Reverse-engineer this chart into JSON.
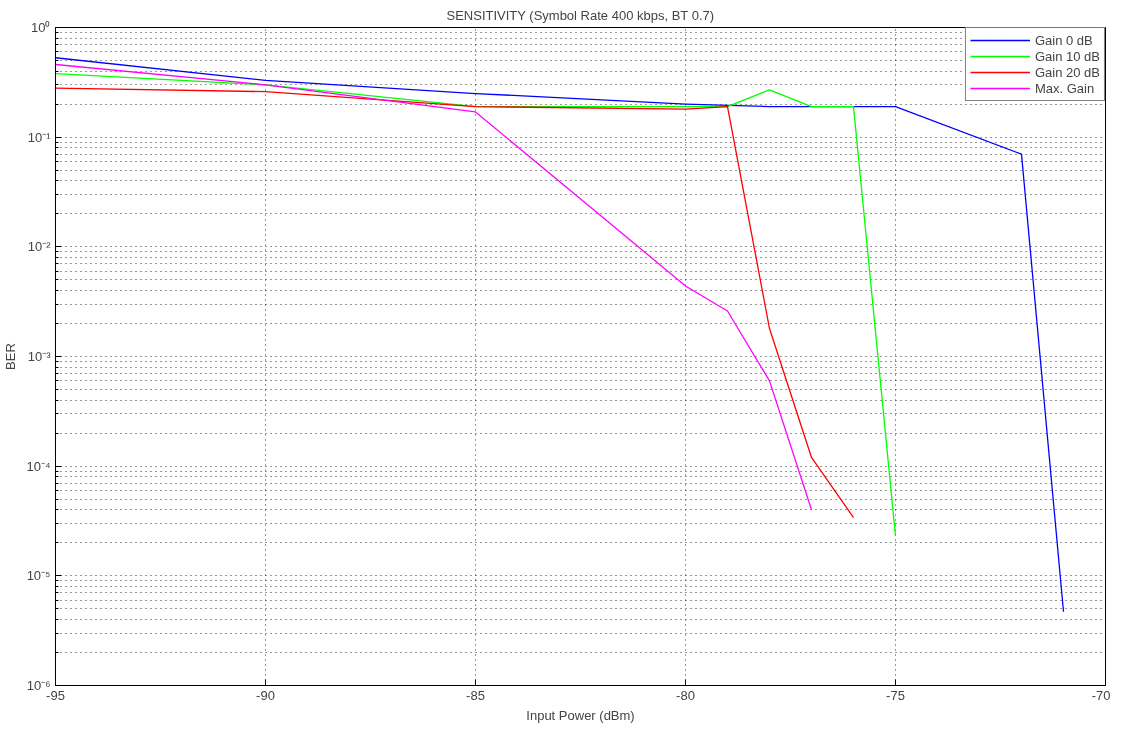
{
  "chart_data": {
    "type": "line",
    "title": "SENSITIVITY (Symbol Rate 400 kbps, BT 0.7)",
    "xlabel": "Input Power (dBm)",
    "ylabel": "BER",
    "log": "y",
    "grid": true,
    "legend": "top right",
    "line_style": "solid",
    "xlim": [
      -95,
      -70
    ],
    "xticks": [
      -95,
      -90,
      -85,
      -80,
      -75,
      -70
    ],
    "ylim": [
      1e-06,
      1
    ],
    "yticks": [
      {
        "value": 1e-06,
        "label": "10⁻⁶"
      },
      {
        "value": 1e-05,
        "label": "10⁻⁵"
      },
      {
        "value": 0.0001,
        "label": "10⁻⁴"
      },
      {
        "value": 0.001,
        "label": "10⁻³"
      },
      {
        "value": 0.01,
        "label": "10⁻²"
      },
      {
        "value": 0.1,
        "label": "10⁻¹"
      },
      {
        "value": 1,
        "label": "10⁰"
      }
    ],
    "series": [
      {
        "name": "Gain 0 dB",
        "color": "#0000ff",
        "x": [
          -95,
          -90,
          -85,
          -80,
          -78,
          -75,
          -72,
          -71
        ],
        "values": [
          0.53,
          0.33,
          0.25,
          0.2,
          0.19,
          0.19,
          0.07,
          4.7e-06
        ]
      },
      {
        "name": "Gain 10 dB",
        "color": "#00ff00",
        "x": [
          -95,
          -90,
          -85,
          -80,
          -79,
          -78,
          -77,
          -76,
          -75
        ],
        "values": [
          0.38,
          0.3,
          0.19,
          0.19,
          0.19,
          0.27,
          0.19,
          0.19,
          2.3e-05
        ]
      },
      {
        "name": "Gain 20 dB",
        "color": "#ff0000",
        "x": [
          -95,
          -90,
          -85,
          -80,
          -79,
          -78,
          -77,
          -76
        ],
        "values": [
          0.28,
          0.26,
          0.19,
          0.18,
          0.19,
          0.0018,
          0.00012,
          3.4e-05
        ]
      },
      {
        "name": "Max. Gain",
        "color": "#ff00ff",
        "x": [
          -95,
          -90,
          -85,
          -80,
          -79,
          -78,
          -77
        ],
        "values": [
          0.46,
          0.3,
          0.17,
          0.0044,
          0.0026,
          0.0006,
          4e-05
        ]
      }
    ]
  }
}
